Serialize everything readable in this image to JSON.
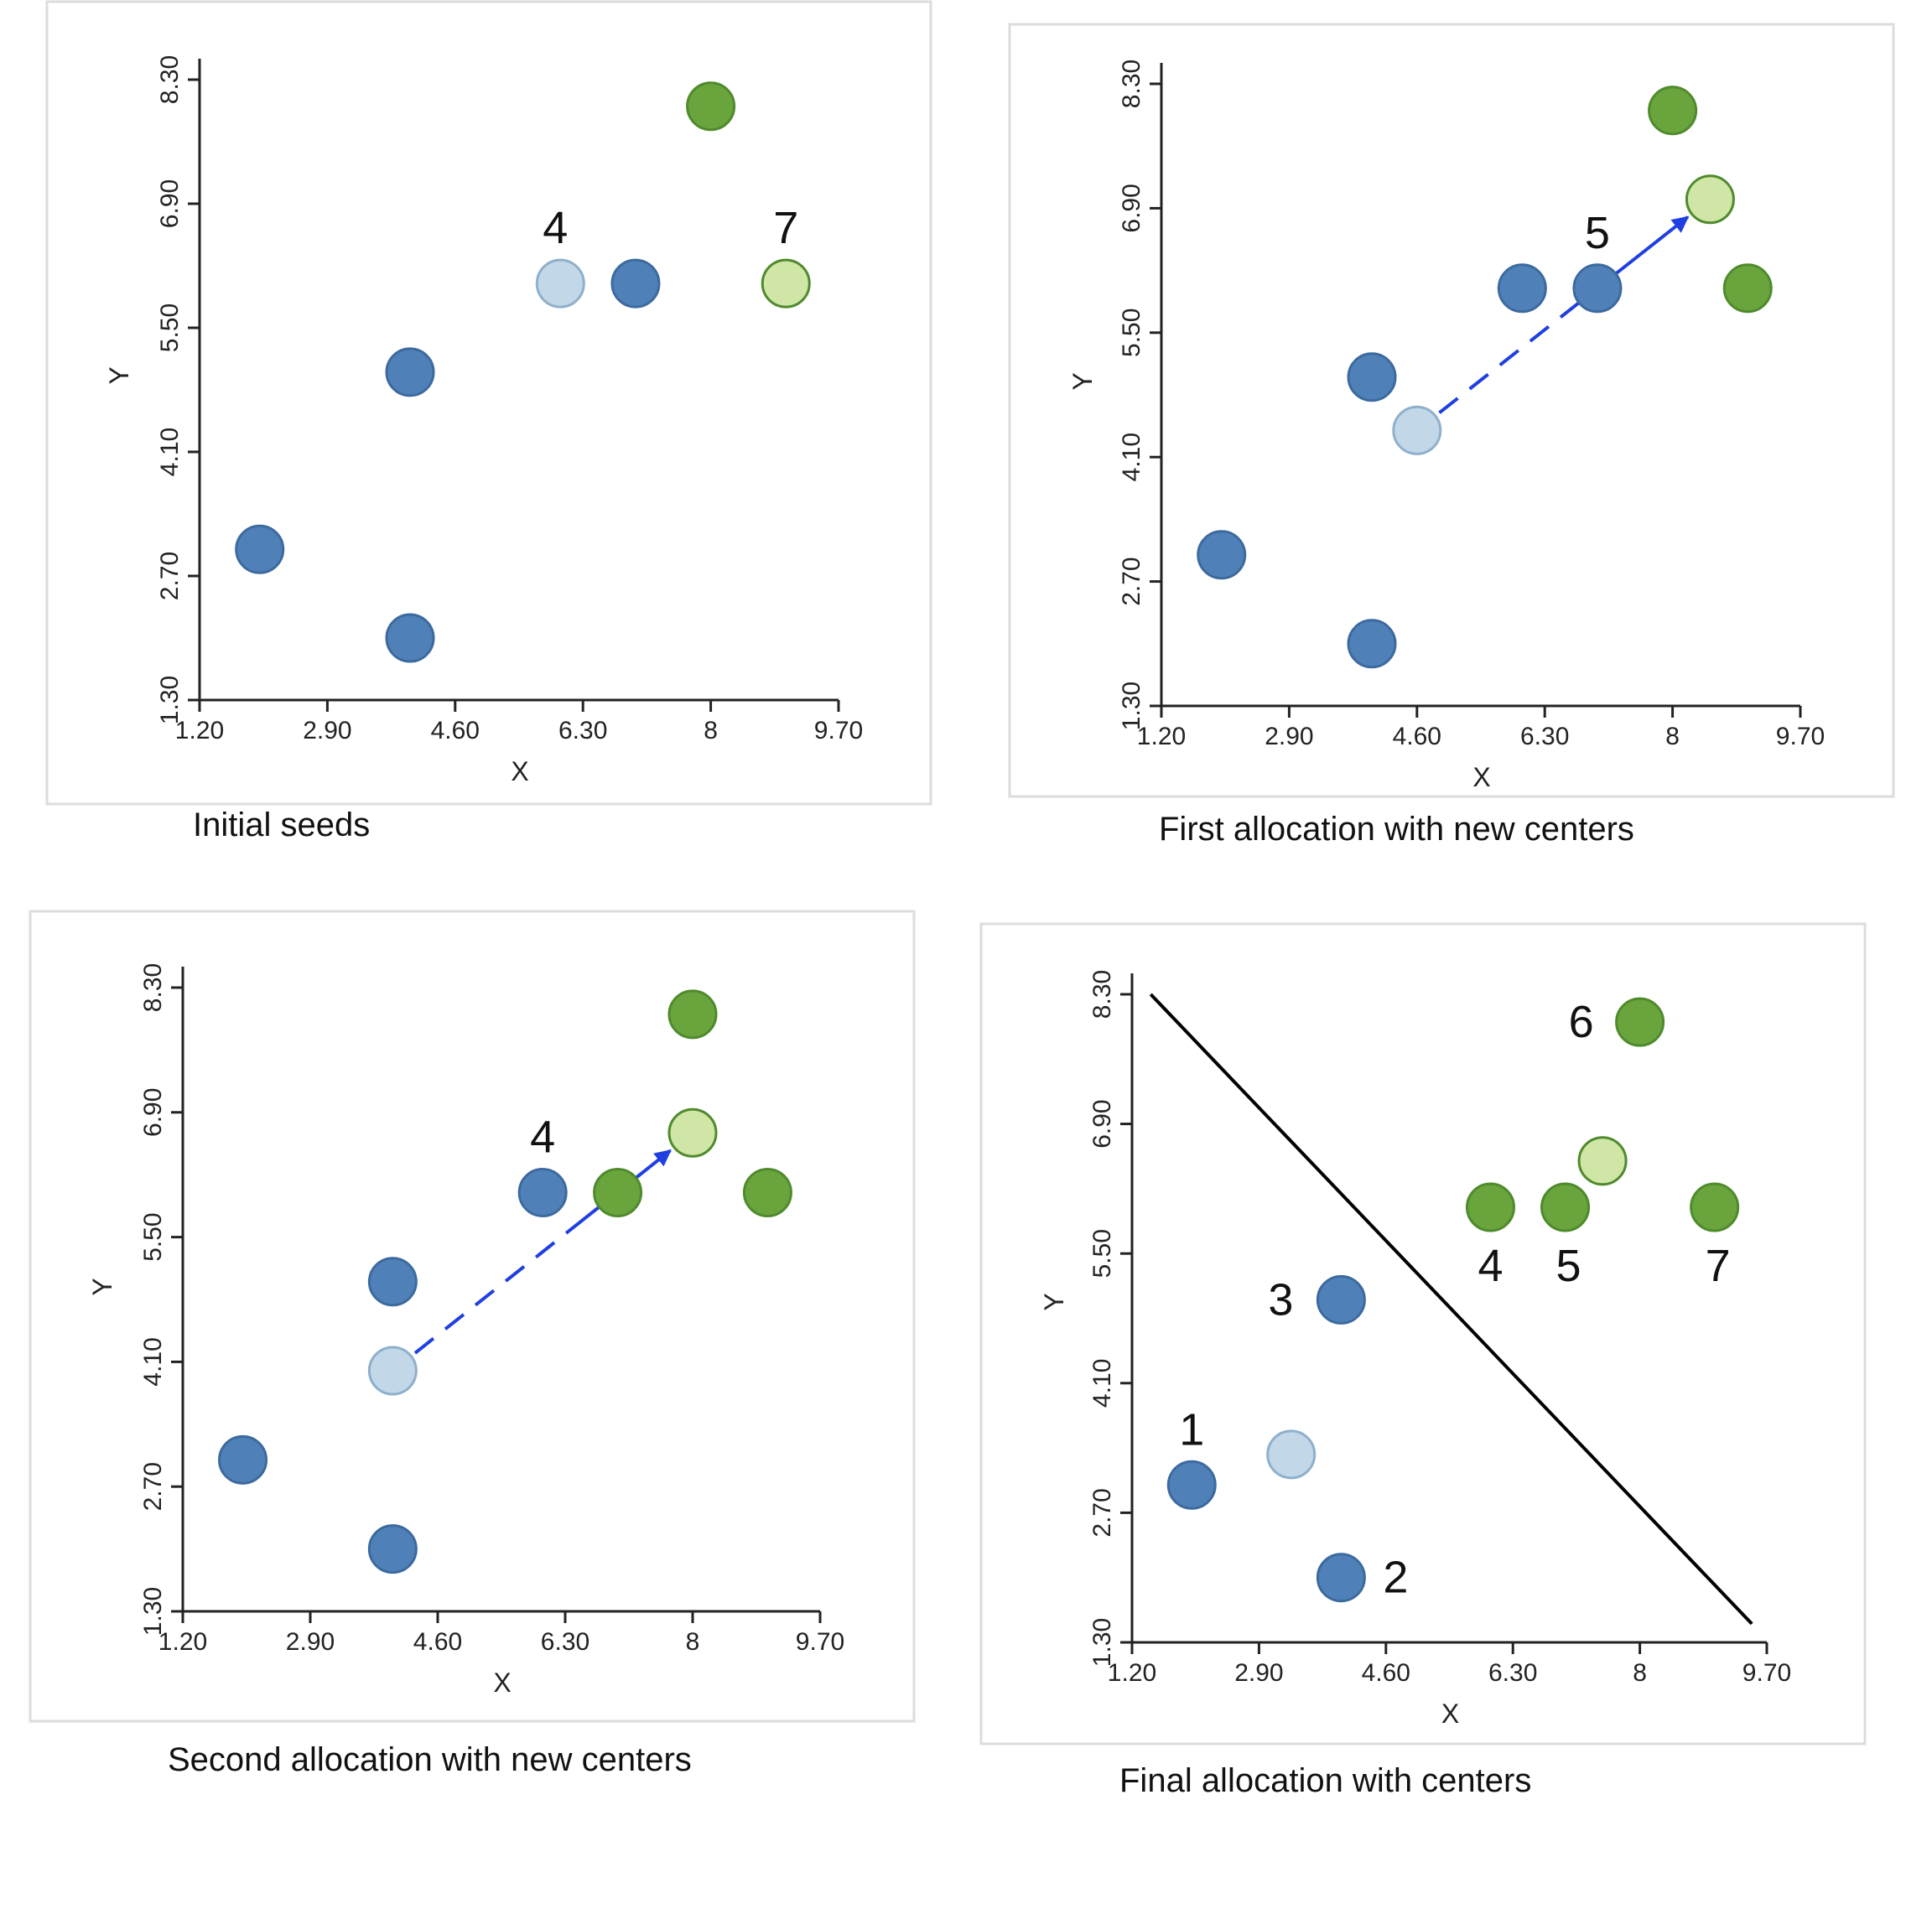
{
  "colors": {
    "blue": "#4f81b8",
    "blue_stroke": "#3c6a9f",
    "light_blue": "#c2d7e8",
    "light_blue_stroke": "#8fb0cc",
    "green": "#69a53c",
    "green_stroke": "#4f8a2c",
    "light_green": "#d0e6a6",
    "light_green_stroke": "#4f8a2c",
    "arrow": "#1f3fe0",
    "divider": "#000000"
  },
  "chart_data": [
    {
      "type": "scatter",
      "title": "Initial seeds",
      "xlabel": "X",
      "ylabel": "Y",
      "xlim": [
        1.2,
        9.7
      ],
      "ylim": [
        1.3,
        8.3
      ],
      "xticks": [
        "1.20",
        "2.90",
        "4.60",
        "6.30",
        "8",
        "9.70"
      ],
      "yticks": [
        "1.30",
        "2.70",
        "4.10",
        "5.50",
        "6.90",
        "8.30"
      ],
      "points": [
        {
          "x": 2.0,
          "y": 3.0,
          "group": "blue"
        },
        {
          "x": 4.0,
          "y": 2.0,
          "group": "blue"
        },
        {
          "x": 4.0,
          "y": 5.0,
          "group": "blue"
        },
        {
          "x": 6.0,
          "y": 6.0,
          "group": "light_blue",
          "label": "4"
        },
        {
          "x": 7.0,
          "y": 6.0,
          "group": "blue"
        },
        {
          "x": 8.0,
          "y": 8.0,
          "group": "green"
        },
        {
          "x": 9.0,
          "y": 6.0,
          "group": "light_green",
          "label": "7"
        }
      ],
      "arrow": null,
      "divider": null
    },
    {
      "type": "scatter",
      "title": "First allocation with new centers",
      "xlabel": "X",
      "ylabel": "Y",
      "xlim": [
        1.2,
        9.7
      ],
      "ylim": [
        1.3,
        8.3
      ],
      "xticks": [
        "1.20",
        "2.90",
        "4.60",
        "6.30",
        "8",
        "9.70"
      ],
      "yticks": [
        "1.30",
        "2.70",
        "4.10",
        "5.50",
        "6.90",
        "8.30"
      ],
      "points": [
        {
          "x": 2.0,
          "y": 3.0,
          "group": "blue"
        },
        {
          "x": 4.0,
          "y": 2.0,
          "group": "blue"
        },
        {
          "x": 4.0,
          "y": 5.0,
          "group": "blue"
        },
        {
          "x": 4.6,
          "y": 4.4,
          "group": "light_blue"
        },
        {
          "x": 6.0,
          "y": 6.0,
          "group": "blue"
        },
        {
          "x": 7.0,
          "y": 6.0,
          "group": "blue",
          "label": "5"
        },
        {
          "x": 8.0,
          "y": 8.0,
          "group": "green"
        },
        {
          "x": 8.5,
          "y": 7.0,
          "group": "light_green"
        },
        {
          "x": 9.0,
          "y": 6.0,
          "group": "green"
        }
      ],
      "arrow": {
        "from": [
          4.6,
          4.4
        ],
        "to": [
          8.5,
          7.0
        ]
      },
      "divider": null
    },
    {
      "type": "scatter",
      "title": "Second allocation with new centers",
      "xlabel": "X",
      "ylabel": "Y",
      "xlim": [
        1.2,
        9.7
      ],
      "ylim": [
        1.3,
        8.3
      ],
      "xticks": [
        "1.20",
        "2.90",
        "4.60",
        "6.30",
        "8",
        "9.70"
      ],
      "yticks": [
        "1.30",
        "2.70",
        "4.10",
        "5.50",
        "6.90",
        "8.30"
      ],
      "points": [
        {
          "x": 2.0,
          "y": 3.0,
          "group": "blue"
        },
        {
          "x": 4.0,
          "y": 2.0,
          "group": "blue"
        },
        {
          "x": 4.0,
          "y": 5.0,
          "group": "blue"
        },
        {
          "x": 4.0,
          "y": 4.0,
          "group": "light_blue"
        },
        {
          "x": 6.0,
          "y": 6.0,
          "group": "blue",
          "label": "4"
        },
        {
          "x": 7.0,
          "y": 6.0,
          "group": "green"
        },
        {
          "x": 8.0,
          "y": 8.0,
          "group": "green"
        },
        {
          "x": 8.0,
          "y": 6.67,
          "group": "light_green"
        },
        {
          "x": 9.0,
          "y": 6.0,
          "group": "green"
        }
      ],
      "arrow": {
        "from": [
          4.0,
          4.0
        ],
        "to": [
          8.0,
          6.67
        ]
      },
      "divider": null
    },
    {
      "type": "scatter",
      "title": "Final allocation with centers",
      "xlabel": "X",
      "ylabel": "Y",
      "xlim": [
        1.2,
        9.7
      ],
      "ylim": [
        1.3,
        8.3
      ],
      "xticks": [
        "1.20",
        "2.90",
        "4.60",
        "6.30",
        "8",
        "9.70"
      ],
      "yticks": [
        "1.30",
        "2.70",
        "4.10",
        "5.50",
        "6.90",
        "8.30"
      ],
      "points": [
        {
          "x": 2.0,
          "y": 3.0,
          "group": "blue",
          "label": "1"
        },
        {
          "x": 4.0,
          "y": 2.0,
          "group": "blue",
          "label": "2"
        },
        {
          "x": 4.0,
          "y": 5.0,
          "group": "blue",
          "label": "3"
        },
        {
          "x": 3.33,
          "y": 3.33,
          "group": "light_blue"
        },
        {
          "x": 6.0,
          "y": 6.0,
          "group": "green",
          "label": "4"
        },
        {
          "x": 7.0,
          "y": 6.0,
          "group": "green",
          "label": "5"
        },
        {
          "x": 8.0,
          "y": 8.0,
          "group": "green",
          "label": "6"
        },
        {
          "x": 7.5,
          "y": 6.5,
          "group": "light_green"
        },
        {
          "x": 9.0,
          "y": 6.0,
          "group": "green",
          "label": "7"
        }
      ],
      "arrow": null,
      "divider": {
        "from": [
          1.45,
          8.3
        ],
        "to": [
          9.5,
          1.5
        ]
      }
    }
  ]
}
